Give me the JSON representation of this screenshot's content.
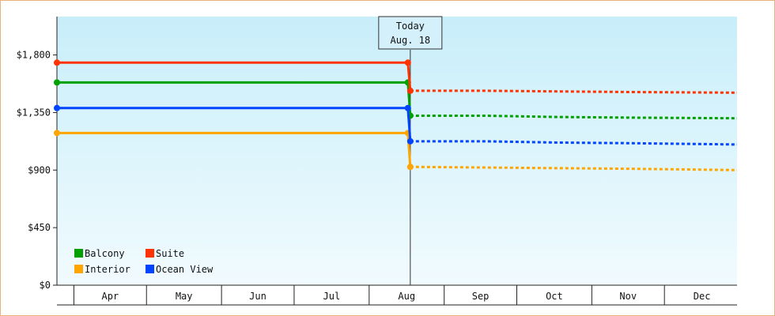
{
  "chart_data": {
    "type": "line",
    "ylim": [
      0,
      2100
    ],
    "y_ticks": [
      0,
      450,
      900,
      1350,
      1800
    ],
    "y_tick_labels": [
      "$0",
      "$450",
      "$900",
      "$1,350",
      "$1,800"
    ],
    "x_range": [
      "2022-03-25",
      "2022-12-31"
    ],
    "months": [
      {
        "label": "Apr",
        "start": "2022-04-01"
      },
      {
        "label": "May",
        "start": "2022-05-01"
      },
      {
        "label": "Jun",
        "start": "2022-06-01"
      },
      {
        "label": "Jul",
        "start": "2022-07-01"
      },
      {
        "label": "Aug",
        "start": "2022-08-01"
      },
      {
        "label": "Sep",
        "start": "2022-09-01"
      },
      {
        "label": "Oct",
        "start": "2022-10-01"
      },
      {
        "label": "Nov",
        "start": "2022-11-01"
      },
      {
        "label": "Dec",
        "start": "2022-12-01"
      }
    ],
    "today_marker": {
      "date": "2022-08-18",
      "line1": "Today",
      "line2": "Aug. 18"
    },
    "series": [
      {
        "name": "Balcony",
        "color": "#00a000",
        "history": [
          [
            "2022-03-25",
            1585
          ],
          [
            "2022-08-17",
            1585
          ]
        ],
        "forecast": [
          [
            "2022-08-18",
            1325
          ],
          [
            "2022-09-18",
            1325
          ],
          [
            "2022-10-18",
            1315
          ],
          [
            "2022-11-18",
            1310
          ],
          [
            "2022-12-31",
            1305
          ]
        ]
      },
      {
        "name": "Suite",
        "color": "#ff3300",
        "history": [
          [
            "2022-03-25",
            1740
          ],
          [
            "2022-08-17",
            1740
          ]
        ],
        "forecast": [
          [
            "2022-08-18",
            1520
          ],
          [
            "2022-09-18",
            1520
          ],
          [
            "2022-10-18",
            1515
          ],
          [
            "2022-11-18",
            1510
          ],
          [
            "2022-12-31",
            1505
          ]
        ]
      },
      {
        "name": "Interior",
        "color": "#ffa500",
        "history": [
          [
            "2022-03-25",
            1190
          ],
          [
            "2022-08-17",
            1190
          ]
        ],
        "forecast": [
          [
            "2022-08-18",
            925
          ],
          [
            "2022-09-18",
            920
          ],
          [
            "2022-10-18",
            915
          ],
          [
            "2022-11-18",
            910
          ],
          [
            "2022-12-31",
            900
          ]
        ]
      },
      {
        "name": "Ocean View",
        "color": "#0044ff",
        "history": [
          [
            "2022-03-25",
            1385
          ],
          [
            "2022-08-17",
            1385
          ]
        ],
        "forecast": [
          [
            "2022-08-18",
            1125
          ],
          [
            "2022-09-18",
            1125
          ],
          [
            "2022-10-18",
            1115
          ],
          [
            "2022-11-18",
            1110
          ],
          [
            "2022-12-31",
            1100
          ]
        ]
      }
    ],
    "legend_order": [
      "Balcony",
      "Suite",
      "Interior",
      "Ocean View"
    ],
    "legend_position": "bottom-left",
    "grid": false,
    "background_gradient": [
      "#c8eefa",
      "#f1fbfe"
    ]
  }
}
